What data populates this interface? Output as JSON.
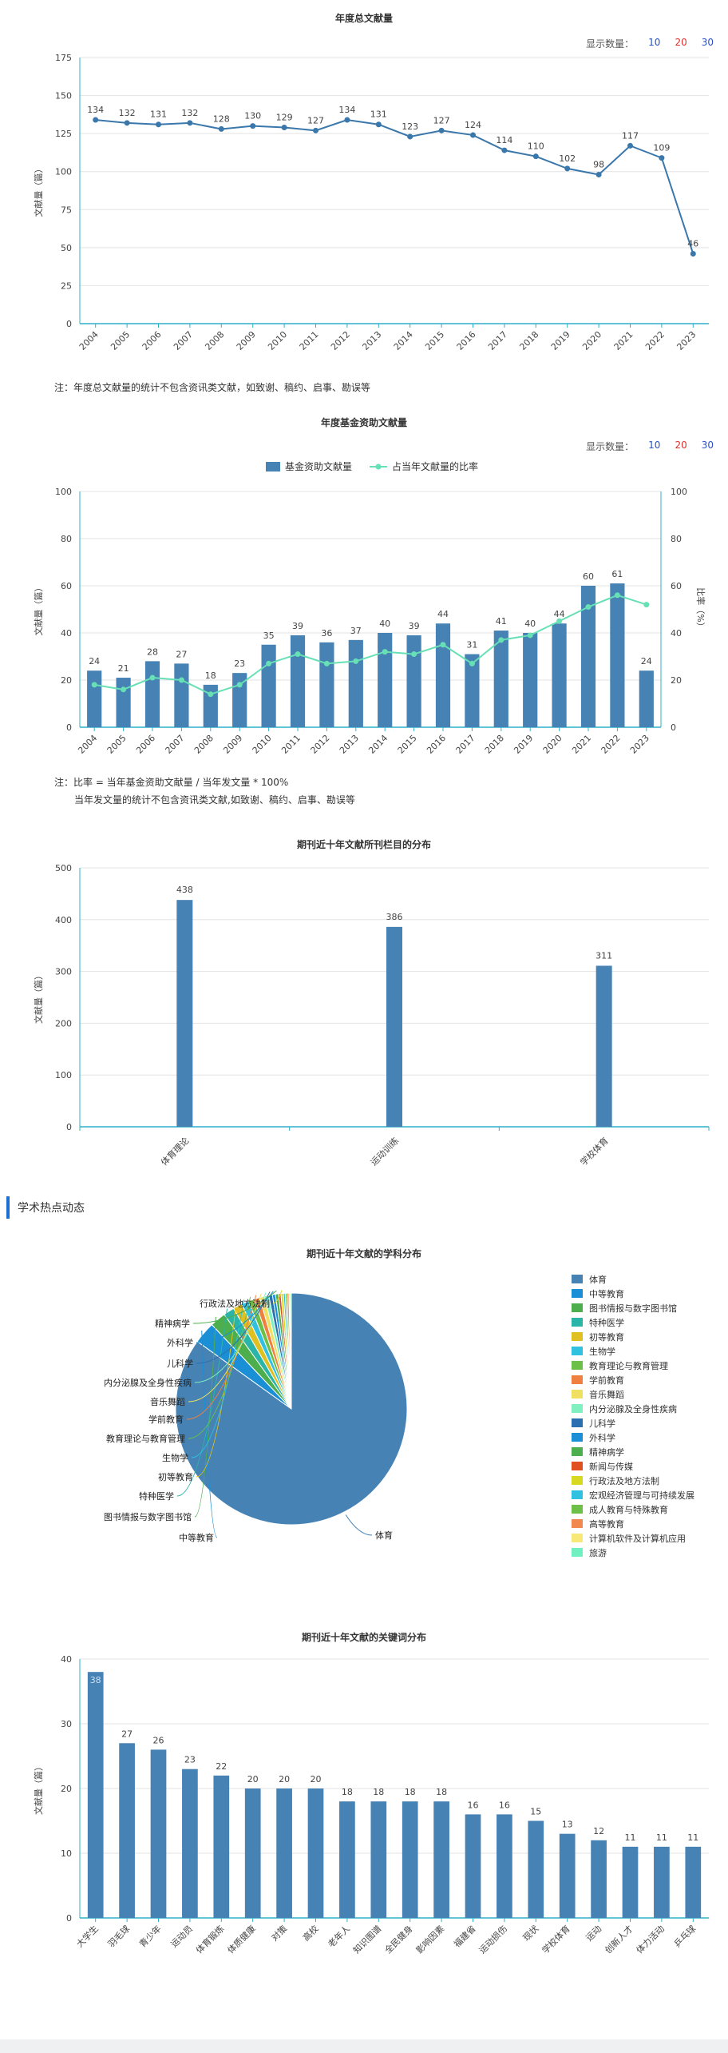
{
  "colors": {
    "accent": "#4682b4",
    "line": "#3a77ab",
    "ratio": "#66e0b4",
    "axis": "#2fb0c8",
    "section": "#1a6fd1"
  },
  "count_selector": {
    "label": "显示数量：",
    "opt10": "10",
    "opt20": "20",
    "opt30": "30"
  },
  "chart1": {
    "note": "注：年度总文献量的统计不包含资讯类文献，如致谢、稿约、启事、勘误等"
  },
  "chart2": {
    "note1": "注：比率 = 当年基金资助文献量 / 当年发文量 * 100%",
    "note2": "当年发文量的统计不包含资讯类文献,如致谢、稿约、启事、勘误等"
  },
  "section": {
    "title": "学术热点动态"
  },
  "chart_data": [
    {
      "type": "line",
      "title": "年度总文献量",
      "ylabel": "文献量（篇）",
      "ylim": [
        0,
        175
      ],
      "yticks": [
        0,
        25,
        50,
        75,
        100,
        125,
        150,
        175
      ],
      "grid": true,
      "categories": [
        "2004",
        "2005",
        "2006",
        "2007",
        "2008",
        "2009",
        "2010",
        "2011",
        "2012",
        "2013",
        "2014",
        "2015",
        "2016",
        "2017",
        "2018",
        "2019",
        "2020",
        "2021",
        "2022",
        "2023"
      ],
      "values": [
        134,
        132,
        131,
        132,
        128,
        130,
        129,
        127,
        134,
        131,
        123,
        127,
        124,
        114,
        110,
        102,
        98,
        117,
        109,
        46
      ]
    },
    {
      "type": "bar",
      "title": "年度基金资助文献量",
      "ylabel": "文献量（篇）",
      "y2label": "比率（%）",
      "ylim": [
        0,
        100
      ],
      "y2lim": [
        0,
        100
      ],
      "yticks": [
        0,
        20,
        40,
        60,
        80,
        100
      ],
      "legend_position": "top",
      "categories": [
        "2004",
        "2005",
        "2006",
        "2007",
        "2008",
        "2009",
        "2010",
        "2011",
        "2012",
        "2013",
        "2014",
        "2015",
        "2016",
        "2017",
        "2018",
        "2019",
        "2020",
        "2021",
        "2022",
        "2023"
      ],
      "series": [
        {
          "name": "基金资助文献量",
          "type": "bar",
          "values": [
            24,
            21,
            28,
            27,
            18,
            23,
            35,
            39,
            36,
            37,
            40,
            39,
            44,
            31,
            41,
            40,
            44,
            60,
            61,
            24
          ]
        },
        {
          "name": "占当年文献量的比率",
          "type": "line",
          "values": [
            18,
            16,
            21,
            20,
            14,
            18,
            27,
            31,
            27,
            28,
            32,
            31,
            35,
            27,
            37,
            39,
            45,
            51,
            56,
            52
          ]
        }
      ]
    },
    {
      "type": "bar",
      "title": "期刊近十年文献所刊栏目的分布",
      "ylabel": "文献量（篇）",
      "ylim": [
        0,
        500
      ],
      "yticks": [
        0,
        100,
        200,
        300,
        400,
        500
      ],
      "categories": [
        "体育理论",
        "运动训练",
        "学校体育"
      ],
      "values": [
        438,
        386,
        311
      ]
    },
    {
      "type": "pie",
      "title": "期刊近十年文献的学科分布",
      "legend_position": "right",
      "categories": [
        "体育",
        "中等教育",
        "图书情报与数字图书馆",
        "特种医学",
        "初等教育",
        "生物学",
        "教育理论与教育管理",
        "学前教育",
        "音乐舞蹈",
        "内分泌腺及全身性疾病",
        "儿科学",
        "外科学",
        "精神病学",
        "新闻与传媒",
        "行政法及地方法制",
        "宏观经济管理与可持续发展",
        "成人教育与特殊教育",
        "高等教育",
        "计算机软件及计算机应用",
        "旅游"
      ],
      "values": [
        1000,
        36,
        26,
        18,
        15,
        12,
        10,
        9,
        8,
        7,
        6,
        5,
        5,
        4,
        4,
        3,
        3,
        3,
        2,
        2
      ],
      "colors": [
        "#4682b4",
        "#1a8fd6",
        "#4cae4c",
        "#2bb5a8",
        "#e0c020",
        "#30c0e0",
        "#6cc048",
        "#f08040",
        "#f0e060",
        "#80f0c0",
        "#2a6fb0",
        "#1a8fd6",
        "#4cae4c",
        "#e05020",
        "#d8d820",
        "#30c0e0",
        "#6cc048",
        "#f08850",
        "#f8e878",
        "#70f0c0"
      ],
      "labeled": [
        "体育",
        "中等教育",
        "图书情报与数字图书馆",
        "特种医学",
        "初等教育",
        "生物学",
        "教育理论与教育管理",
        "学前教育",
        "音乐舞蹈",
        "内分泌腺及全身性疾病",
        "儿科学",
        "外科学",
        "精神病学",
        "行政法及地方法制"
      ]
    },
    {
      "type": "bar",
      "title": "期刊近十年文献的关键词分布",
      "ylabel": "文献量（篇）",
      "ylim": [
        0,
        40
      ],
      "yticks": [
        0,
        10,
        20,
        30,
        40
      ],
      "categories": [
        "大学生",
        "羽毛球",
        "青少年",
        "运动员",
        "体育锻炼",
        "体质健康",
        "对策",
        "高校",
        "老年人",
        "知识图谱",
        "全民健身",
        "影响因素",
        "福建省",
        "运动损伤",
        "现状",
        "学校体育",
        "运动",
        "创新人才",
        "体力活动",
        "乒乓球"
      ],
      "values": [
        38,
        27,
        26,
        23,
        22,
        20,
        20,
        20,
        18,
        18,
        18,
        18,
        16,
        16,
        15,
        13,
        12,
        11,
        11,
        11
      ]
    }
  ]
}
